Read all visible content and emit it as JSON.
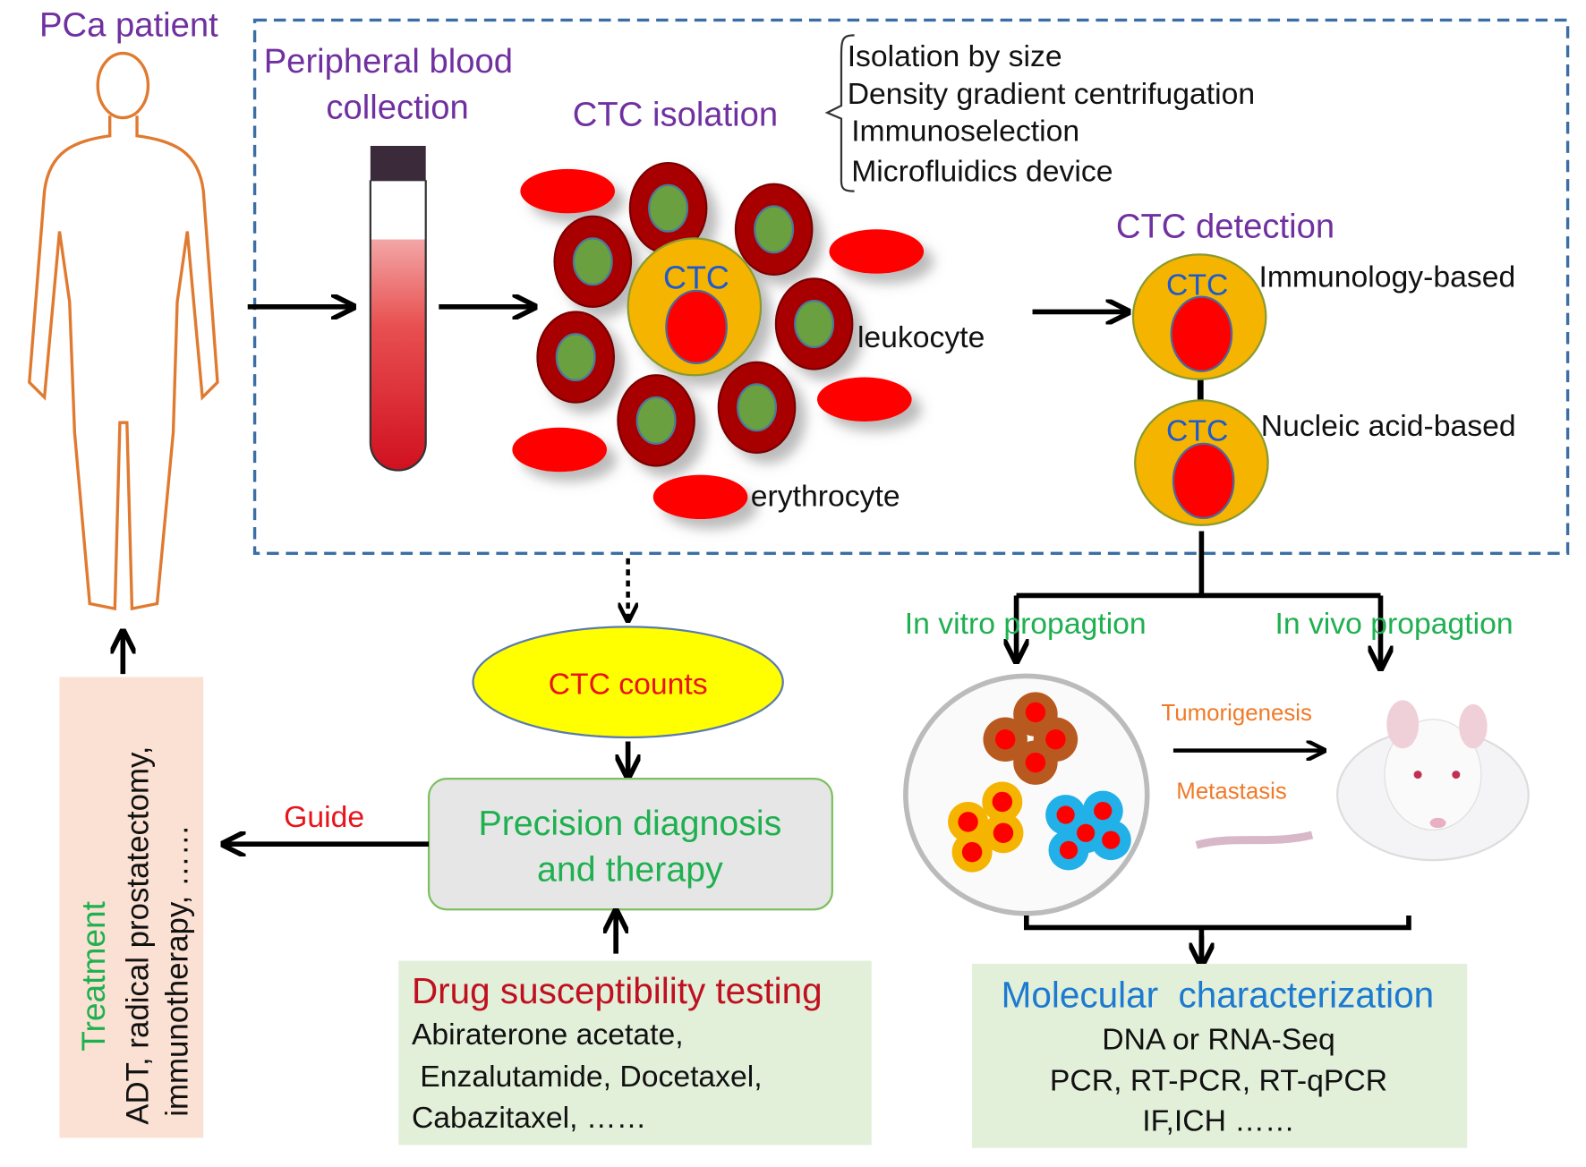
{
  "colors": {
    "purple": "#7030a0",
    "green": "#1fb050",
    "red": "#e8141c",
    "blue": "#1c7ad0",
    "orange": "#f07a28",
    "dashed_border": "#3a6ea5",
    "ctc_yellow": "#f5b400",
    "box_green": "#e2efd9",
    "box_peach": "#fbe1d3"
  },
  "patient": {
    "label": "PCa patient"
  },
  "blood": {
    "label_line1": "Peripheral blood",
    "label_line2": "collection"
  },
  "isolation": {
    "label": "CTC isolation",
    "methods": [
      "Isolation by size",
      "Density gradient centrifugation",
      "Immunoselection",
      "Microfluidics device"
    ],
    "ctc_label": "CTC",
    "leukocyte": "leukocyte",
    "erythrocyte": "erythrocyte"
  },
  "detection": {
    "label": "CTC detection",
    "ctc_label": "CTC",
    "methods": [
      "Immunology-based",
      "Nucleic acid-based"
    ]
  },
  "propagation": {
    "in_vitro": "In vitro propagtion",
    "in_vivo": "In vivo propagtion",
    "tumorigenesis": "Tumorigenesis",
    "metastasis": "Metastasis"
  },
  "counts": {
    "label": "CTC counts"
  },
  "precision": {
    "line1": "Precision diagnosis",
    "line2": "and therapy"
  },
  "guide": {
    "label": "Guide"
  },
  "drug": {
    "title": "Drug susceptibility testing",
    "lines": [
      "Abiraterone acetate,",
      " Enzalutamide, Docetaxel,",
      "Cabazitaxel, ……"
    ]
  },
  "molecular": {
    "title": "Molecular  characterization",
    "lines": [
      "DNA or RNA-Seq",
      "PCR, RT-PCR, RT-qPCR",
      "IF,ICH ……"
    ]
  },
  "treatment": {
    "title": "Treatment",
    "line1": "ADT, radical prostatectomy,",
    "line2": "immunotherapy, ……"
  }
}
